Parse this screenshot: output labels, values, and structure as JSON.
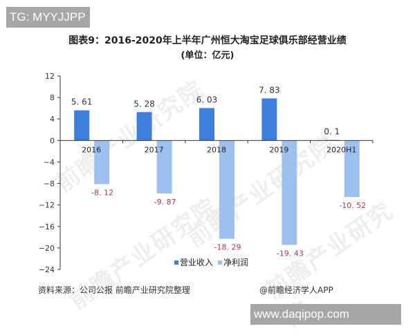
{
  "badge_top": "TG: MYYJJPP",
  "title": {
    "line1": "图表9：2016-2020年上半年广州恒大淘宝足球俱乐部经营业绩",
    "line2": "(单位：亿元)"
  },
  "source": "资料来源：公司公报 前瞻产业研究院整理",
  "credit": "@前瞻经济学人APP",
  "badge_bottom": "www.daqipop.com",
  "watermark": "前瞻产业研究院",
  "colors": {
    "revenue": "#3d7fdb",
    "net_profit": "#9ec0ee",
    "positive_label": "#333333",
    "negative_label": "#b03a4a",
    "axis": "#333333"
  },
  "chart_data": {
    "type": "bar",
    "title": "图表9：2016-2020年上半年广州恒大淘宝足球俱乐部经营业绩 (单位：亿元)",
    "xlabel": "",
    "ylabel": "",
    "categories": [
      "2016",
      "2017",
      "2018",
      "2019",
      "2020H1"
    ],
    "series": [
      {
        "name": "营业收入",
        "values": [
          5.61,
          5.28,
          6.03,
          7.83,
          0.1
        ],
        "labels": [
          "5. 61",
          "5. 28",
          "6. 03",
          "7. 83",
          "0. 1"
        ]
      },
      {
        "name": "净利润",
        "values": [
          -8.12,
          -9.87,
          -18.29,
          -19.43,
          -10.52
        ],
        "labels": [
          "-8. 12",
          "-9. 87",
          "-18. 29",
          "-19. 43",
          "-10. 52"
        ]
      }
    ],
    "ylim": [
      -24,
      12
    ],
    "yticks": [
      12,
      8,
      4,
      0,
      -4,
      -8,
      -12,
      -16,
      -20,
      -24
    ],
    "grid": false,
    "legend_position": "bottom"
  }
}
